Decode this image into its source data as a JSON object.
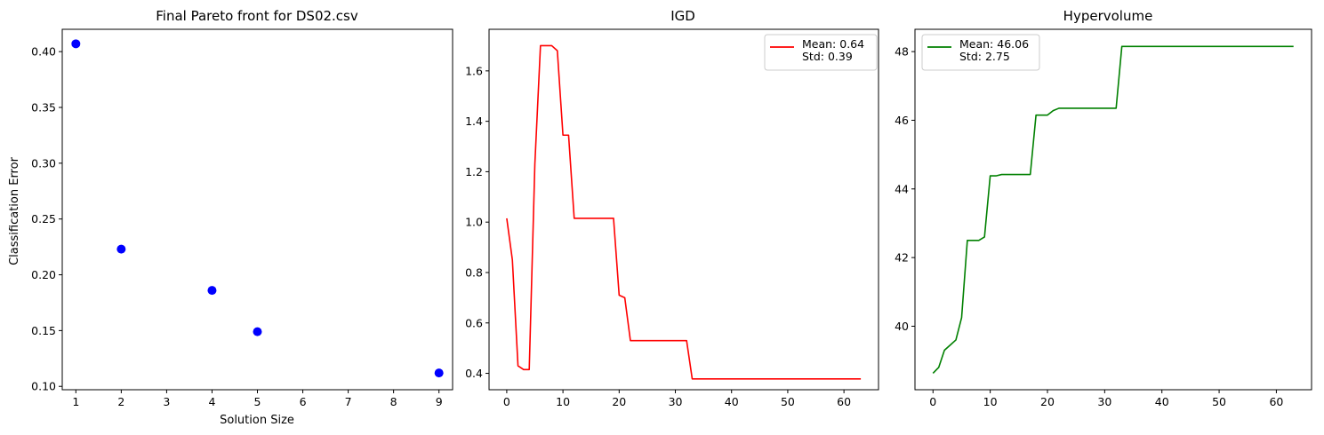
{
  "chart_data": [
    {
      "type": "scatter",
      "title": "Final Pareto front for DS02.csv",
      "xlabel": "Solution Size",
      "ylabel": "Classification Error",
      "xlim": [
        0.7,
        9.3
      ],
      "ylim": [
        0.097,
        0.42
      ],
      "xticks": [
        1,
        2,
        3,
        4,
        5,
        6,
        7,
        8,
        9
      ],
      "xtick_labels": [
        "1",
        "2",
        "3",
        "4",
        "5",
        "6",
        "7",
        "8",
        "9"
      ],
      "yticks": [
        0.1,
        0.15,
        0.2,
        0.25,
        0.3,
        0.35,
        0.4
      ],
      "ytick_labels": [
        "0.10",
        "0.15",
        "0.20",
        "0.25",
        "0.30",
        "0.35",
        "0.40"
      ],
      "color": "#0000ff",
      "grid": false,
      "points": [
        {
          "x": 1,
          "y": 0.407
        },
        {
          "x": 2,
          "y": 0.223
        },
        {
          "x": 4,
          "y": 0.186
        },
        {
          "x": 5,
          "y": 0.149
        },
        {
          "x": 9,
          "y": 0.112
        }
      ]
    },
    {
      "type": "line",
      "title": "IGD",
      "xlabel": "",
      "ylabel": "",
      "xlim": [
        -3.15,
        66.15
      ],
      "ylim": [
        0.335,
        1.765
      ],
      "xticks": [
        0,
        10,
        20,
        30,
        40,
        50,
        60
      ],
      "xtick_labels": [
        "0",
        "10",
        "20",
        "30",
        "40",
        "50",
        "60"
      ],
      "yticks": [
        0.4,
        0.6,
        0.8,
        1.0,
        1.2,
        1.4,
        1.6
      ],
      "ytick_labels": [
        "0.4",
        "0.6",
        "0.8",
        "1.0",
        "1.2",
        "1.4",
        "1.6"
      ],
      "color": "#ff0000",
      "grid": false,
      "legend": {
        "placement": "upper right",
        "lines": [
          "Mean: 0.64",
          "Std: 0.39"
        ]
      },
      "series": [
        {
          "x": [
            0,
            1,
            2,
            3,
            4,
            5,
            6,
            7,
            8,
            9,
            10,
            11,
            12,
            13,
            14,
            15,
            16,
            17,
            18,
            19,
            20,
            21,
            22,
            23,
            24,
            25,
            26,
            27,
            28,
            29,
            30,
            31,
            32,
            33,
            34,
            35,
            36,
            37,
            38,
            39,
            40,
            41,
            42,
            43,
            44,
            45,
            46,
            47,
            48,
            49,
            50,
            51,
            52,
            53,
            54,
            55,
            56,
            57,
            58,
            59,
            60,
            61,
            62,
            63
          ],
          "values": [
            1.015,
            0.85,
            0.43,
            0.415,
            0.415,
            1.23,
            1.7,
            1.7,
            1.7,
            1.68,
            1.345,
            1.345,
            1.015,
            1.015,
            1.015,
            1.015,
            1.015,
            1.015,
            1.015,
            1.015,
            0.71,
            0.7,
            0.53,
            0.53,
            0.53,
            0.53,
            0.53,
            0.53,
            0.53,
            0.53,
            0.53,
            0.53,
            0.53,
            0.378,
            0.378,
            0.378,
            0.378,
            0.378,
            0.378,
            0.378,
            0.378,
            0.378,
            0.378,
            0.378,
            0.378,
            0.378,
            0.378,
            0.378,
            0.378,
            0.378,
            0.378,
            0.378,
            0.378,
            0.378,
            0.378,
            0.378,
            0.378,
            0.378,
            0.378,
            0.378,
            0.378,
            0.378,
            0.378,
            0.378
          ]
        }
      ]
    },
    {
      "type": "line",
      "title": "Hypervolume",
      "xlabel": "",
      "ylabel": "",
      "xlim": [
        -3.15,
        66.15
      ],
      "ylim": [
        38.15,
        48.65
      ],
      "xticks": [
        0,
        10,
        20,
        30,
        40,
        50,
        60
      ],
      "xtick_labels": [
        "0",
        "10",
        "20",
        "30",
        "40",
        "50",
        "60"
      ],
      "yticks": [
        40,
        42,
        44,
        46,
        48
      ],
      "ytick_labels": [
        "40",
        "42",
        "44",
        "46",
        "48"
      ],
      "color": "#008000",
      "grid": false,
      "legend": {
        "placement": "upper left",
        "lines": [
          "Mean: 46.06",
          "Std: 2.75"
        ]
      },
      "series": [
        {
          "x": [
            0,
            1,
            2,
            3,
            4,
            5,
            6,
            7,
            8,
            9,
            10,
            11,
            12,
            13,
            14,
            15,
            16,
            17,
            18,
            19,
            20,
            21,
            22,
            23,
            24,
            25,
            26,
            27,
            28,
            29,
            30,
            31,
            32,
            33,
            34,
            35,
            36,
            37,
            38,
            39,
            40,
            41,
            42,
            43,
            44,
            45,
            46,
            47,
            48,
            49,
            50,
            51,
            52,
            53,
            54,
            55,
            56,
            57,
            58,
            59,
            60,
            61,
            62,
            63
          ],
          "values": [
            38.63,
            38.8,
            39.3,
            39.45,
            39.6,
            40.25,
            42.5,
            42.5,
            42.5,
            42.6,
            44.38,
            44.38,
            44.42,
            44.42,
            44.42,
            44.42,
            44.42,
            44.42,
            46.15,
            46.15,
            46.15,
            46.28,
            46.35,
            46.35,
            46.35,
            46.35,
            46.35,
            46.35,
            46.35,
            46.35,
            46.35,
            46.35,
            46.35,
            48.15,
            48.15,
            48.15,
            48.15,
            48.15,
            48.15,
            48.15,
            48.15,
            48.15,
            48.15,
            48.15,
            48.15,
            48.15,
            48.15,
            48.15,
            48.15,
            48.15,
            48.15,
            48.15,
            48.15,
            48.15,
            48.15,
            48.15,
            48.15,
            48.15,
            48.15,
            48.15,
            48.15,
            48.15,
            48.15,
            48.15
          ]
        }
      ]
    }
  ]
}
